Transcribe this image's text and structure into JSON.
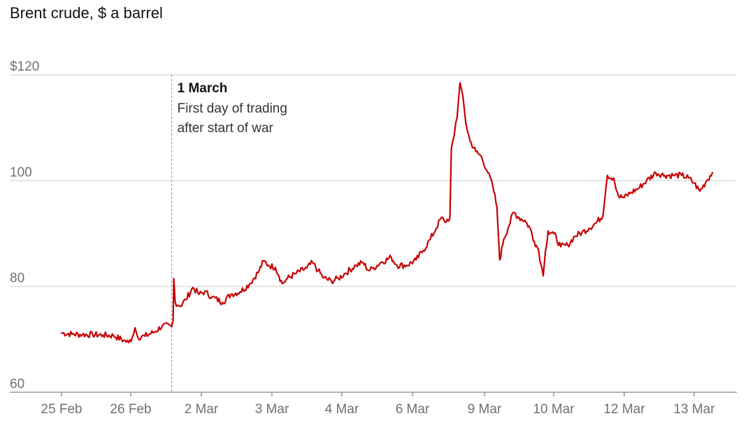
{
  "chart_data": {
    "type": "line",
    "title": "Brent crude, $ a barrel",
    "ylim": [
      60,
      120
    ],
    "y_ticks": [
      {
        "value": 120,
        "label": "$120"
      },
      {
        "value": 100,
        "label": "100"
      },
      {
        "value": 80,
        "label": "80"
      },
      {
        "value": 60,
        "label": "60"
      }
    ],
    "x_ticks": [
      "25 Feb",
      "26 Feb",
      "2 Mar",
      "3 Mar",
      "4 Mar",
      "6 Mar",
      "9 Mar",
      "10 Mar",
      "12 Mar",
      "13 Mar"
    ],
    "x_range": [
      0,
      9.3
    ],
    "grid": true,
    "line_color": "#c70000",
    "annotation": {
      "x": 1.6,
      "title": "1 March",
      "lines": [
        "First day of trading",
        "after start of war"
      ]
    },
    "series": [
      {
        "values": [
          [
            0.0,
            71.2
          ],
          [
            0.15,
            71.0
          ],
          [
            0.3,
            70.9
          ],
          [
            0.45,
            70.9
          ],
          [
            0.6,
            70.8
          ],
          [
            0.75,
            70.7
          ],
          [
            0.9,
            69.8
          ],
          [
            0.97,
            69.4
          ],
          [
            1.02,
            70.3
          ],
          [
            1.06,
            72.2
          ],
          [
            1.1,
            70.4
          ],
          [
            1.2,
            70.6
          ],
          [
            1.35,
            71.5
          ],
          [
            1.45,
            72.6
          ],
          [
            1.58,
            72.4
          ],
          [
            1.6,
            73.5
          ],
          [
            1.61,
            81.5
          ],
          [
            1.63,
            77.0
          ],
          [
            1.7,
            76.3
          ],
          [
            1.78,
            77.5
          ],
          [
            1.88,
            79.8
          ],
          [
            1.97,
            78.5
          ],
          [
            2.05,
            79.0
          ],
          [
            2.15,
            78.0
          ],
          [
            2.3,
            77.0
          ],
          [
            2.42,
            78.5
          ],
          [
            2.55,
            79.0
          ],
          [
            2.68,
            80.4
          ],
          [
            2.82,
            83.0
          ],
          [
            2.88,
            84.8
          ],
          [
            2.95,
            84.0
          ],
          [
            3.05,
            83.6
          ],
          [
            3.1,
            82.0
          ],
          [
            3.15,
            80.5
          ],
          [
            3.22,
            81.5
          ],
          [
            3.35,
            82.5
          ],
          [
            3.5,
            83.5
          ],
          [
            3.58,
            84.5
          ],
          [
            3.66,
            83.0
          ],
          [
            3.74,
            81.6
          ],
          [
            3.85,
            81.0
          ],
          [
            3.95,
            81.5
          ],
          [
            4.05,
            82.5
          ],
          [
            4.2,
            84.0
          ],
          [
            4.3,
            84.5
          ],
          [
            4.38,
            83.0
          ],
          [
            4.45,
            83.5
          ],
          [
            4.55,
            84.5
          ],
          [
            4.7,
            85.5
          ],
          [
            4.78,
            84.0
          ],
          [
            4.92,
            84.0
          ],
          [
            5.05,
            85.0
          ],
          [
            5.15,
            86.8
          ],
          [
            5.25,
            89.0
          ],
          [
            5.33,
            91.0
          ],
          [
            5.4,
            93.0
          ],
          [
            5.45,
            92.2
          ],
          [
            5.52,
            93.0
          ],
          [
            5.54,
            106.0
          ],
          [
            5.58,
            108.5
          ],
          [
            5.62,
            112.0
          ],
          [
            5.66,
            118.5
          ],
          [
            5.7,
            116.0
          ],
          [
            5.74,
            111.0
          ],
          [
            5.8,
            107.5
          ],
          [
            5.88,
            105.5
          ],
          [
            5.96,
            104.5
          ],
          [
            6.05,
            101.5
          ],
          [
            6.12,
            99.0
          ],
          [
            6.18,
            95.0
          ],
          [
            6.22,
            85.0
          ],
          [
            6.28,
            89.0
          ],
          [
            6.34,
            91.0
          ],
          [
            6.42,
            94.0
          ],
          [
            6.5,
            93.0
          ],
          [
            6.58,
            92.5
          ],
          [
            6.66,
            91.0
          ],
          [
            6.72,
            88.5
          ],
          [
            6.78,
            87.0
          ],
          [
            6.82,
            84.0
          ],
          [
            6.85,
            82.0
          ],
          [
            6.88,
            86.5
          ],
          [
            6.92,
            90.5
          ],
          [
            7.0,
            90.0
          ],
          [
            7.1,
            87.5
          ],
          [
            7.2,
            87.8
          ],
          [
            7.3,
            89.5
          ],
          [
            7.4,
            90.2
          ],
          [
            7.5,
            91.0
          ],
          [
            7.6,
            92.0
          ],
          [
            7.7,
            93.5
          ],
          [
            7.76,
            101.0
          ],
          [
            7.85,
            100.5
          ],
          [
            7.92,
            97.0
          ],
          [
            8.0,
            96.8
          ],
          [
            8.1,
            97.8
          ],
          [
            8.2,
            98.5
          ],
          [
            8.32,
            100.0
          ],
          [
            8.45,
            101.5
          ],
          [
            8.58,
            101.0
          ],
          [
            8.7,
            101.0
          ],
          [
            8.82,
            101.0
          ],
          [
            8.92,
            100.5
          ],
          [
            9.0,
            99.5
          ],
          [
            9.08,
            98.0
          ],
          [
            9.18,
            100.0
          ],
          [
            9.26,
            101.5
          ]
        ]
      }
    ]
  }
}
